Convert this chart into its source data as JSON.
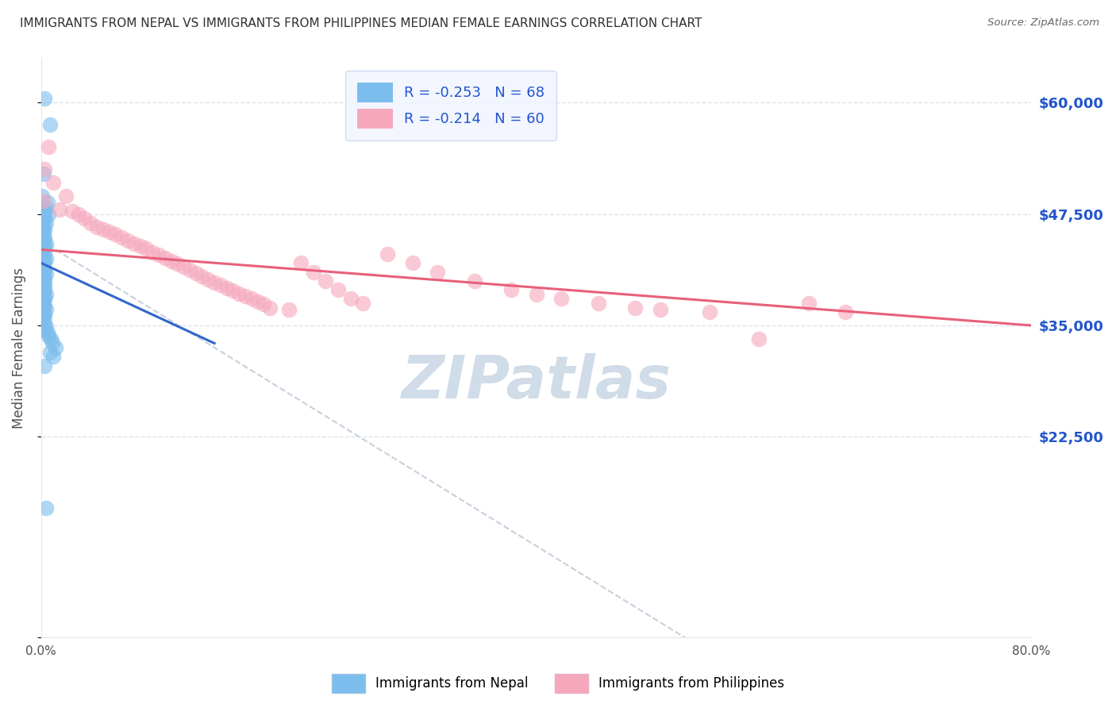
{
  "title": "IMMIGRANTS FROM NEPAL VS IMMIGRANTS FROM PHILIPPINES MEDIAN FEMALE EARNINGS CORRELATION CHART",
  "source": "Source: ZipAtlas.com",
  "ylabel": "Median Female Earnings",
  "xlim": [
    0.0,
    0.8
  ],
  "ylim": [
    0,
    65000
  ],
  "yticks": [
    0,
    22500,
    35000,
    47500,
    60000
  ],
  "ytick_labels": [
    "",
    "$22,500",
    "$35,000",
    "$47,500",
    "$60,000"
  ],
  "xticks": [
    0.0,
    0.1,
    0.2,
    0.3,
    0.4,
    0.5,
    0.6,
    0.7,
    0.8
  ],
  "xtick_labels": [
    "0.0%",
    "",
    "",
    "",
    "",
    "",
    "",
    "",
    "80.0%"
  ],
  "nepal_R": -0.253,
  "nepal_N": 68,
  "phil_R": -0.214,
  "phil_N": 60,
  "nepal_color": "#7bbded",
  "phil_color": "#f5a8bc",
  "nepal_line_color": "#3366cc",
  "phil_line_color": "#e8607a",
  "dashed_line_color": "#c8d0dc",
  "title_color": "#303030",
  "axis_label_color": "#505050",
  "ytick_color": "#2255cc",
  "watermark_color": "#d0dce8",
  "legend_box_color": "#f0f4ff",
  "legend_border_color": "#c8d4f0",
  "background_color": "#ffffff",
  "grid_color": "#dde2ec",
  "nepal_x": [
    0.003,
    0.007,
    0.002,
    0.001,
    0.005,
    0.004,
    0.002,
    0.003,
    0.006,
    0.002,
    0.001,
    0.003,
    0.002,
    0.004,
    0.001,
    0.002,
    0.003,
    0.002,
    0.001,
    0.003,
    0.002,
    0.004,
    0.003,
    0.002,
    0.001,
    0.003,
    0.002,
    0.004,
    0.003,
    0.002,
    0.001,
    0.002,
    0.003,
    0.002,
    0.004,
    0.002,
    0.003,
    0.002,
    0.001,
    0.003,
    0.002,
    0.003,
    0.002,
    0.004,
    0.002,
    0.003,
    0.002,
    0.001,
    0.003,
    0.002,
    0.004,
    0.002,
    0.003,
    0.002,
    0.001,
    0.003,
    0.002,
    0.004,
    0.003,
    0.005,
    0.006,
    0.008,
    0.009,
    0.012,
    0.007,
    0.01,
    0.003,
    0.004
  ],
  "nepal_y": [
    60500,
    57500,
    52000,
    49500,
    48800,
    48200,
    47900,
    47700,
    47500,
    47300,
    47200,
    47000,
    46800,
    46500,
    46200,
    46000,
    45700,
    45400,
    45100,
    44800,
    44500,
    44200,
    44000,
    43700,
    43400,
    43100,
    42800,
    42500,
    42200,
    42000,
    41800,
    41500,
    41200,
    41000,
    40800,
    40500,
    40200,
    40000,
    39800,
    39500,
    39200,
    39000,
    38800,
    38500,
    38200,
    38000,
    37800,
    37500,
    37200,
    37000,
    36800,
    36500,
    36200,
    36000,
    35700,
    35400,
    35100,
    34800,
    34500,
    34200,
    33800,
    33500,
    33000,
    32500,
    32000,
    31500,
    30500,
    14500
  ],
  "phil_x": [
    0.002,
    0.006,
    0.003,
    0.01,
    0.02,
    0.015,
    0.025,
    0.03,
    0.035,
    0.04,
    0.045,
    0.05,
    0.055,
    0.06,
    0.065,
    0.07,
    0.075,
    0.08,
    0.085,
    0.09,
    0.095,
    0.1,
    0.105,
    0.11,
    0.115,
    0.12,
    0.125,
    0.13,
    0.135,
    0.14,
    0.145,
    0.15,
    0.155,
    0.16,
    0.165,
    0.17,
    0.175,
    0.18,
    0.185,
    0.2,
    0.21,
    0.22,
    0.23,
    0.24,
    0.25,
    0.26,
    0.28,
    0.3,
    0.32,
    0.35,
    0.38,
    0.4,
    0.42,
    0.45,
    0.48,
    0.5,
    0.54,
    0.58,
    0.62,
    0.65
  ],
  "phil_y": [
    49000,
    55000,
    52500,
    51000,
    49500,
    48000,
    47800,
    47500,
    47000,
    46500,
    46000,
    45800,
    45500,
    45200,
    44900,
    44500,
    44200,
    43900,
    43600,
    43200,
    42900,
    42600,
    42200,
    41900,
    41600,
    41200,
    40900,
    40500,
    40200,
    39800,
    39500,
    39200,
    38900,
    38600,
    38300,
    38000,
    37700,
    37400,
    37000,
    36800,
    42000,
    41000,
    40000,
    39000,
    38000,
    37500,
    43000,
    42000,
    41000,
    40000,
    39000,
    38500,
    38000,
    37500,
    37000,
    36800,
    36500,
    33500,
    37500,
    36500
  ],
  "nepal_trend_x": [
    0.0,
    0.14
  ],
  "nepal_trend_y": [
    42000,
    33000
  ],
  "phil_trend_x": [
    0.0,
    0.8
  ],
  "phil_trend_y": [
    43500,
    35000
  ],
  "dashed_trend_x": [
    0.0,
    0.52
  ],
  "dashed_trend_y": [
    44500,
    0
  ]
}
